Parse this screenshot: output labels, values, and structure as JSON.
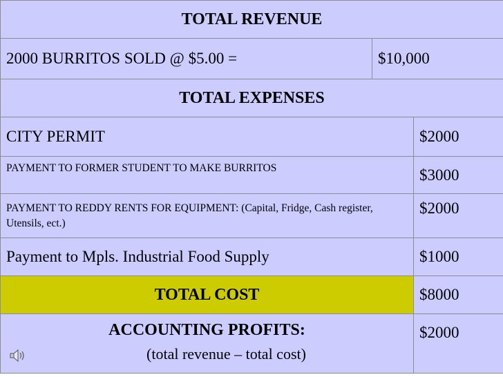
{
  "revenue": {
    "header": "TOTAL REVENUE",
    "line": "2000 BURRITOS SOLD @ $5.00  =",
    "amount": "$10,000"
  },
  "expenses": {
    "header": "TOTAL EXPENSES",
    "items": [
      {
        "label": "CITY PERMIT",
        "amount": "$2000"
      },
      {
        "label": "PAYMENT TO FORMER STUDENT TO MAKE BURRITOS",
        "amount": "$3000"
      },
      {
        "label": "PAYMENT TO REDDY RENTS FOR EQUIPMENT: (Capital, Fridge, Cash register, Utensils, ect.)",
        "amount": "$2000"
      },
      {
        "label": "Payment to Mpls. Industrial Food Supply",
        "amount": "$1000"
      }
    ]
  },
  "total_cost": {
    "label": "TOTAL COST",
    "amount": "$8000"
  },
  "profits": {
    "label": "ACCOUNTING PROFITS:",
    "formula": "(total revenue – total cost)",
    "amount": "$2000"
  },
  "icons": {
    "speaker": "speaker-icon"
  },
  "colors": {
    "header_bg": "#ccccff",
    "total_cost_bg": "#cccc00",
    "border": "#8c8c8c"
  }
}
